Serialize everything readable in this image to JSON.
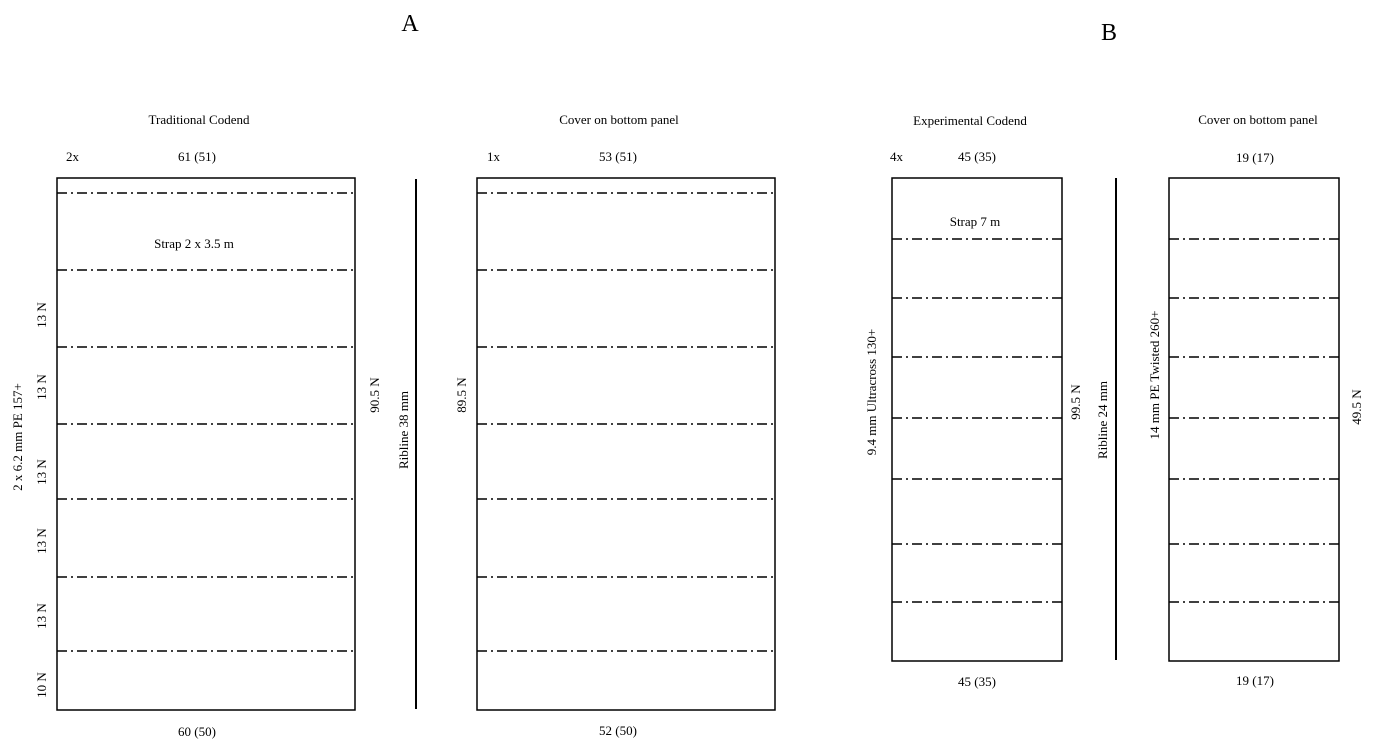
{
  "figure": {
    "section_a_label": "A",
    "section_b_label": "B"
  },
  "traditional_codend": {
    "title": "Traditional Codend",
    "multiplier": "2x",
    "top_meshes": "61 (51)",
    "bottom_meshes": "60 (50)",
    "strap_label": "Strap 2 x 3.5 m",
    "netting_label": "2 x 6.2 mm PE 157+",
    "length_label": "90.5 N",
    "section_labels": [
      "13 N",
      "13 N",
      "13 N",
      "13 N",
      "13 N",
      "10 N"
    ]
  },
  "cover_a": {
    "title": "Cover on bottom panel",
    "multiplier": "1x",
    "top_meshes": "53 (51)",
    "bottom_meshes": "52 (50)",
    "length_label": "89.5 N"
  },
  "ribline_a": {
    "label": "Ribline 38 mm"
  },
  "experimental_codend": {
    "title": "Experimental Codend",
    "multiplier": "4x",
    "top_meshes": "45 (35)",
    "bottom_meshes": "45 (35)",
    "strap_label": "Strap 7 m",
    "netting_label": "9.4 mm Ultracross 130+",
    "length_label": "99.5 N"
  },
  "cover_b": {
    "title": "Cover on bottom panel",
    "top_meshes": "19 (17)",
    "bottom_meshes": "19 (17)",
    "netting_label": "14 mm PE Twisted 260+",
    "length_label": "49.5 N"
  },
  "ribline_b": {
    "label": "Ribline 24 mm"
  }
}
